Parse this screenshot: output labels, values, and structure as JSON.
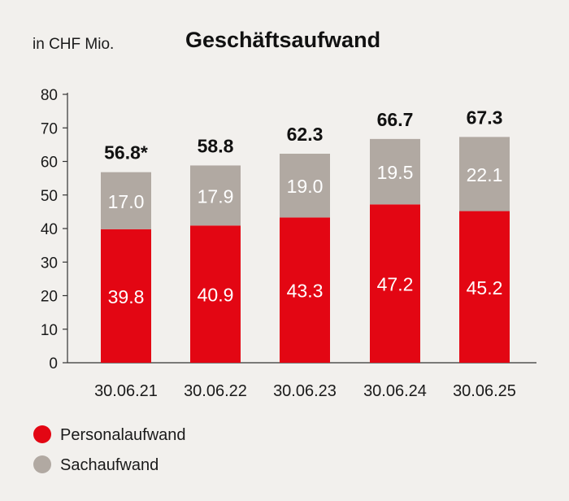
{
  "chart_data": {
    "type": "bar",
    "stacked": true,
    "title": "Geschäftsaufwand",
    "unit_label": "in CHF Mio.",
    "categories": [
      "30.06.21",
      "30.06.22",
      "30.06.23",
      "30.06.24",
      "30.06.25"
    ],
    "series": [
      {
        "name": "Personalaufwand",
        "color": "#e30613",
        "values": [
          39.8,
          40.9,
          43.3,
          47.2,
          45.2
        ],
        "labels": [
          "39.8",
          "40.9",
          "43.3",
          "47.2",
          "45.2"
        ]
      },
      {
        "name": "Sachaufwand",
        "color": "#b1a9a2",
        "values": [
          17.0,
          17.9,
          19.0,
          19.5,
          22.1
        ],
        "labels": [
          "17.0",
          "17.9",
          "19.0",
          "19.5",
          "22.1"
        ]
      }
    ],
    "totals": [
      "56.8*",
      "58.8",
      "62.3",
      "66.7",
      "67.3"
    ],
    "yticks": [
      0,
      10,
      20,
      30,
      40,
      50,
      60,
      70,
      80
    ],
    "ylim": [
      0,
      80
    ],
    "grid": false,
    "legend_position": "bottom-left"
  }
}
